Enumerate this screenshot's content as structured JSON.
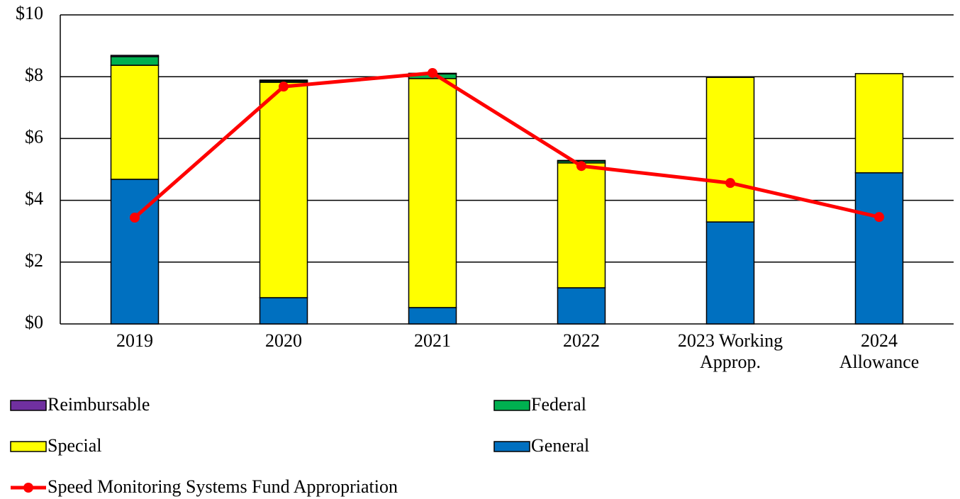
{
  "chart_data": {
    "type": "bar",
    "stacked": true,
    "categories": [
      "2019",
      "2020",
      "2021",
      "2022",
      "2023 Working Approp.",
      "2024 Allowance"
    ],
    "series": [
      {
        "name": "Reimbursable",
        "color": "#7030a0",
        "values": [
          0.04,
          0.03,
          0.02,
          0.02,
          0,
          0
        ]
      },
      {
        "name": "Federal",
        "color": "#00b050",
        "values": [
          0.28,
          0.04,
          0.15,
          0.06,
          0.01,
          0
        ]
      },
      {
        "name": "Special",
        "color": "#ffff00",
        "values": [
          3.69,
          6.97,
          7.41,
          4.04,
          4.68,
          3.21
        ]
      },
      {
        "name": "General",
        "color": "#0070c0",
        "values": [
          4.68,
          0.85,
          0.53,
          1.17,
          3.3,
          4.89
        ]
      },
      {
        "name": "Speed Monitoring Systems Fund Appropriation",
        "type": "line",
        "color": "#ff0000",
        "values": [
          3.44,
          7.68,
          8.12,
          5.11,
          4.56,
          3.46
        ]
      }
    ],
    "ylim": [
      0,
      10
    ],
    "yticks": [
      {
        "value": 0,
        "label": "$0"
      },
      {
        "value": 2,
        "label": "$2"
      },
      {
        "value": 4,
        "label": "$4"
      },
      {
        "value": 6,
        "label": "$6"
      },
      {
        "value": 8,
        "label": "$8"
      },
      {
        "value": 10,
        "label": "$10"
      }
    ],
    "grid": true
  }
}
